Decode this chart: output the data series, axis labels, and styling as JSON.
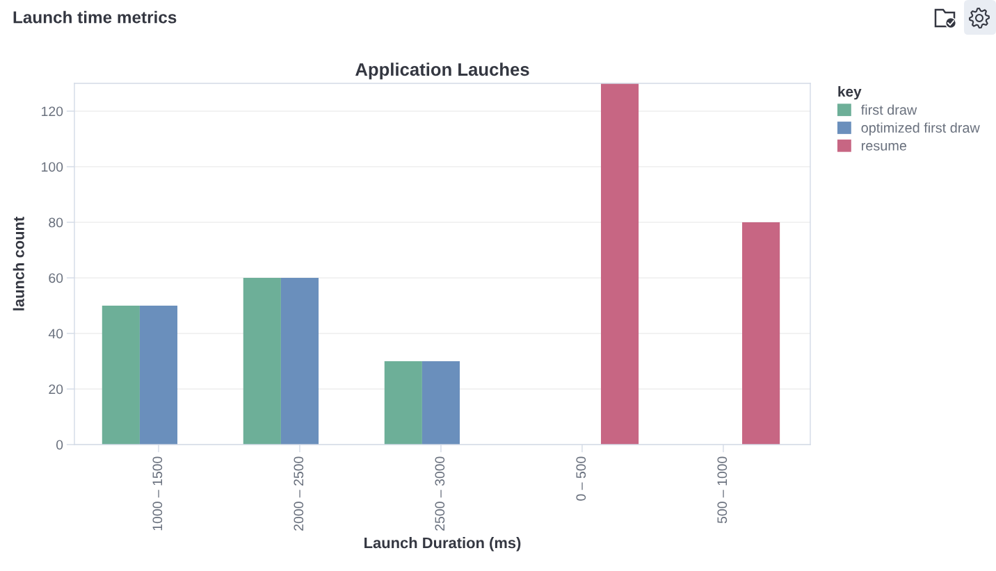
{
  "chart_data": {
    "type": "bar",
    "title": "Launch time metrics",
    "subtitle": "Application Lauches",
    "xlabel": "Launch Duration (ms)",
    "ylabel": "launch count",
    "legend_title": "key",
    "categories": [
      "1000 – 1500",
      "2000 – 2500",
      "2500 – 3000",
      "0 – 500",
      "500 – 1000"
    ],
    "series": [
      {
        "name": "first draw",
        "color": "#6daf98",
        "values": [
          50,
          60,
          30,
          null,
          null
        ]
      },
      {
        "name": "optimized first draw",
        "color": "#6a8fbc",
        "values": [
          50,
          60,
          30,
          null,
          null
        ]
      },
      {
        "name": "resume",
        "color": "#c76683",
        "values": [
          null,
          null,
          null,
          130,
          80
        ]
      }
    ],
    "ylim": [
      0,
      130
    ],
    "yticks": [
      0,
      20,
      40,
      60,
      80,
      100,
      120
    ],
    "grid": "y",
    "legend": "right"
  }
}
